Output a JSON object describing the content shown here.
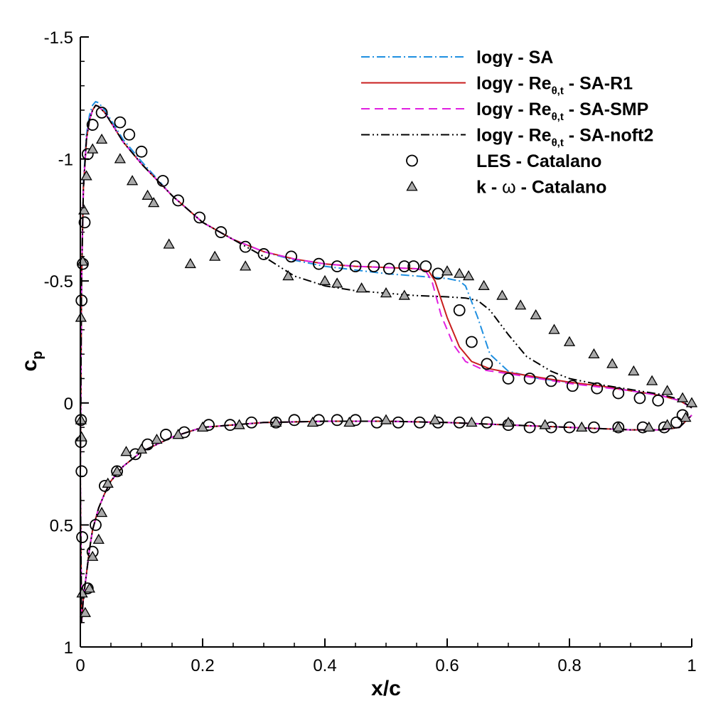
{
  "chart_data": {
    "type": "line",
    "title": "",
    "xlabel": "x/c",
    "ylabel": "c",
    "ylabel_subscript": "p",
    "xlim": [
      0,
      1
    ],
    "ylim": [
      1,
      -1.5
    ],
    "y_axis_inverted": true,
    "grid": false,
    "legend_position": "top-right",
    "x_ticks": [
      "0",
      "0.2",
      "0.4",
      "0.6",
      "0.8",
      "1"
    ],
    "y_ticks": [
      "-1.5",
      "-1",
      "-0.5",
      "0",
      "0.5",
      "1"
    ],
    "x_tick_values": [
      0,
      0.2,
      0.4,
      0.6,
      0.8,
      1
    ],
    "y_tick_values": [
      -1.5,
      -1,
      -0.5,
      0,
      0.5,
      1
    ],
    "lower_surface": {
      "x": [
        0,
        0.002,
        0.005,
        0.01,
        0.015,
        0.02,
        0.03,
        0.04,
        0.05,
        0.07,
        0.1,
        0.15,
        0.2,
        0.3,
        0.4,
        0.5,
        0.6,
        0.7,
        0.8,
        0.9,
        0.95,
        0.98,
        1.0
      ],
      "cp": [
        1.0,
        0.9,
        0.8,
        0.7,
        0.6,
        0.52,
        0.43,
        0.37,
        0.32,
        0.26,
        0.2,
        0.14,
        0.1,
        0.08,
        0.075,
        0.075,
        0.08,
        0.09,
        0.1,
        0.11,
        0.11,
        0.1,
        0.05
      ]
    },
    "series": [
      {
        "name": "SA",
        "legend": {
          "prefix": "logγ - SA",
          "sub": "",
          "suffix": ""
        },
        "color": "#1f8fe0",
        "dash": "12,4,2,4",
        "upper": {
          "x": [
            0,
            0.002,
            0.005,
            0.01,
            0.015,
            0.02,
            0.025,
            0.03,
            0.04,
            0.05,
            0.07,
            0.1,
            0.15,
            0.2,
            0.25,
            0.3,
            0.35,
            0.4,
            0.45,
            0.5,
            0.55,
            0.6,
            0.62,
            0.63,
            0.65,
            0.67,
            0.7,
            0.75,
            0.8,
            0.85,
            0.9,
            0.95,
            0.98,
            1.0
          ],
          "cp": [
            0.3,
            -0.5,
            -0.9,
            -1.1,
            -1.18,
            -1.22,
            -1.235,
            -1.23,
            -1.2,
            -1.16,
            -1.08,
            -0.99,
            -0.85,
            -0.74,
            -0.67,
            -0.62,
            -0.585,
            -0.56,
            -0.545,
            -0.53,
            -0.52,
            -0.51,
            -0.5,
            -0.48,
            -0.35,
            -0.2,
            -0.13,
            -0.1,
            -0.085,
            -0.07,
            -0.05,
            -0.03,
            -0.01,
            0.02
          ]
        },
        "lower_delta": 0
      },
      {
        "name": "SA-R1",
        "legend": {
          "prefix": "logγ - Re",
          "sub": "θ,t",
          "suffix": " - SA-R1"
        },
        "color": "#c81e1e",
        "dash": "",
        "upper": {
          "x": [
            0,
            0.002,
            0.005,
            0.01,
            0.015,
            0.02,
            0.025,
            0.03,
            0.04,
            0.05,
            0.07,
            0.1,
            0.15,
            0.2,
            0.25,
            0.3,
            0.35,
            0.4,
            0.45,
            0.5,
            0.55,
            0.57,
            0.58,
            0.6,
            0.62,
            0.64,
            0.67,
            0.7,
            0.75,
            0.8,
            0.85,
            0.9,
            0.95,
            0.98,
            1.0
          ],
          "cp": [
            0.3,
            -0.5,
            -0.88,
            -1.08,
            -1.16,
            -1.2,
            -1.22,
            -1.215,
            -1.19,
            -1.15,
            -1.07,
            -0.98,
            -0.85,
            -0.74,
            -0.67,
            -0.62,
            -0.59,
            -0.57,
            -0.56,
            -0.555,
            -0.55,
            -0.54,
            -0.5,
            -0.35,
            -0.23,
            -0.17,
            -0.14,
            -0.125,
            -0.105,
            -0.085,
            -0.07,
            -0.05,
            -0.03,
            -0.01,
            0.02
          ]
        },
        "lower_delta": 0
      },
      {
        "name": "SA-SMP",
        "legend": {
          "prefix": "logγ - Re",
          "sub": "θ,t",
          "suffix": " - SA-SMP"
        },
        "color": "#e020e0",
        "dash": "12,7",
        "upper": {
          "x": [
            0,
            0.002,
            0.005,
            0.01,
            0.015,
            0.02,
            0.025,
            0.03,
            0.04,
            0.05,
            0.07,
            0.1,
            0.15,
            0.2,
            0.25,
            0.3,
            0.35,
            0.4,
            0.45,
            0.5,
            0.55,
            0.565,
            0.575,
            0.59,
            0.61,
            0.63,
            0.66,
            0.7,
            0.75,
            0.8,
            0.85,
            0.9,
            0.95,
            0.98,
            1.0
          ],
          "cp": [
            0.3,
            -0.5,
            -0.88,
            -1.08,
            -1.16,
            -1.2,
            -1.22,
            -1.215,
            -1.19,
            -1.15,
            -1.07,
            -0.98,
            -0.85,
            -0.74,
            -0.67,
            -0.62,
            -0.59,
            -0.57,
            -0.56,
            -0.555,
            -0.55,
            -0.54,
            -0.5,
            -0.36,
            -0.24,
            -0.17,
            -0.135,
            -0.12,
            -0.1,
            -0.08,
            -0.065,
            -0.05,
            -0.03,
            -0.01,
            0.02
          ]
        },
        "lower_delta": 0
      },
      {
        "name": "SA-noft2",
        "legend": {
          "prefix": "logγ - Re",
          "sub": "θ,t",
          "suffix": " - SA-noft2"
        },
        "color": "#000000",
        "dash": "12,4,2,4,2,4",
        "upper": {
          "x": [
            0,
            0.002,
            0.005,
            0.01,
            0.015,
            0.02,
            0.025,
            0.03,
            0.04,
            0.05,
            0.07,
            0.1,
            0.15,
            0.2,
            0.25,
            0.3,
            0.35,
            0.4,
            0.45,
            0.5,
            0.55,
            0.6,
            0.63,
            0.65,
            0.67,
            0.7,
            0.73,
            0.77,
            0.8,
            0.85,
            0.9,
            0.95,
            0.98,
            1.0
          ],
          "cp": [
            0.3,
            -0.5,
            -0.88,
            -1.08,
            -1.16,
            -1.2,
            -1.22,
            -1.215,
            -1.19,
            -1.15,
            -1.07,
            -0.98,
            -0.85,
            -0.74,
            -0.67,
            -0.6,
            -0.52,
            -0.48,
            -0.46,
            -0.45,
            -0.44,
            -0.435,
            -0.43,
            -0.42,
            -0.38,
            -0.28,
            -0.19,
            -0.13,
            -0.1,
            -0.075,
            -0.055,
            -0.035,
            -0.015,
            0.02
          ]
        },
        "lower_delta": 0
      }
    ],
    "scatter": [
      {
        "name": "LES - Catalano",
        "marker": "circle",
        "upper": [
          [
            0.001,
            0.16
          ],
          [
            0.002,
            -0.42
          ],
          [
            0.004,
            -0.57
          ],
          [
            0.007,
            -0.74
          ],
          [
            0.012,
            -1.02
          ],
          [
            0.02,
            -1.14
          ],
          [
            0.035,
            -1.19
          ],
          [
            0.065,
            -1.15
          ],
          [
            0.08,
            -1.1
          ],
          [
            0.1,
            -1.03
          ],
          [
            0.135,
            -0.91
          ],
          [
            0.16,
            -0.83
          ],
          [
            0.195,
            -0.76
          ],
          [
            0.23,
            -0.7
          ],
          [
            0.27,
            -0.64
          ],
          [
            0.3,
            -0.61
          ],
          [
            0.345,
            -0.6
          ],
          [
            0.39,
            -0.57
          ],
          [
            0.42,
            -0.56
          ],
          [
            0.45,
            -0.56
          ],
          [
            0.48,
            -0.56
          ],
          [
            0.505,
            -0.55
          ],
          [
            0.53,
            -0.56
          ],
          [
            0.545,
            -0.56
          ],
          [
            0.565,
            -0.56
          ],
          [
            0.585,
            -0.53
          ],
          [
            0.62,
            -0.38
          ],
          [
            0.64,
            -0.25
          ],
          [
            0.665,
            -0.16
          ],
          [
            0.7,
            -0.1
          ],
          [
            0.735,
            -0.1
          ],
          [
            0.77,
            -0.09
          ],
          [
            0.805,
            -0.07
          ],
          [
            0.845,
            -0.06
          ],
          [
            0.88,
            -0.04
          ],
          [
            0.915,
            -0.02
          ],
          [
            0.945,
            -0.01
          ],
          [
            0.985,
            0.05
          ]
        ],
        "lower": [
          [
            0.001,
            0.07
          ],
          [
            0.002,
            0.28
          ],
          [
            0.003,
            0.55
          ],
          [
            0.012,
            0.76
          ],
          [
            0.02,
            0.61
          ],
          [
            0.025,
            0.5
          ],
          [
            0.04,
            0.34
          ],
          [
            0.06,
            0.28
          ],
          [
            0.09,
            0.21
          ],
          [
            0.11,
            0.17
          ],
          [
            0.14,
            0.13
          ],
          [
            0.17,
            0.12
          ],
          [
            0.21,
            0.09
          ],
          [
            0.245,
            0.09
          ],
          [
            0.28,
            0.08
          ],
          [
            0.32,
            0.08
          ],
          [
            0.35,
            0.07
          ],
          [
            0.39,
            0.07
          ],
          [
            0.42,
            0.07
          ],
          [
            0.45,
            0.07
          ],
          [
            0.485,
            0.08
          ],
          [
            0.52,
            0.08
          ],
          [
            0.555,
            0.08
          ],
          [
            0.585,
            0.08
          ],
          [
            0.62,
            0.08
          ],
          [
            0.665,
            0.08
          ],
          [
            0.7,
            0.09
          ],
          [
            0.735,
            0.1
          ],
          [
            0.77,
            0.1
          ],
          [
            0.8,
            0.1
          ],
          [
            0.84,
            0.1
          ],
          [
            0.88,
            0.1
          ],
          [
            0.92,
            0.1
          ],
          [
            0.955,
            0.1
          ],
          [
            0.975,
            0.08
          ]
        ]
      },
      {
        "name": "k - ω - Catalano",
        "legend_prefix": "k - ",
        "legend_symbol": "ω",
        "legend_suffix": " - Catalano",
        "marker": "triangle",
        "upper": [
          [
            0.001,
            -0.35
          ],
          [
            0.002,
            0.14
          ],
          [
            0.004,
            -0.58
          ],
          [
            0.006,
            -0.79
          ],
          [
            0.01,
            -0.93
          ],
          [
            0.02,
            -1.04
          ],
          [
            0.035,
            -1.08
          ],
          [
            0.065,
            -1.0
          ],
          [
            0.085,
            -0.91
          ],
          [
            0.11,
            -0.85
          ],
          [
            0.12,
            -0.82
          ],
          [
            0.145,
            -0.65
          ],
          [
            0.18,
            -0.57
          ],
          [
            0.22,
            -0.6
          ],
          [
            0.27,
            -0.56
          ],
          [
            0.34,
            -0.52
          ],
          [
            0.4,
            -0.5
          ],
          [
            0.42,
            -0.49
          ],
          [
            0.46,
            -0.47
          ],
          [
            0.5,
            -0.45
          ],
          [
            0.53,
            -0.44
          ],
          [
            0.6,
            -0.54
          ],
          [
            0.62,
            -0.53
          ],
          [
            0.635,
            -0.52
          ],
          [
            0.66,
            -0.48
          ],
          [
            0.69,
            -0.44
          ],
          [
            0.72,
            -0.4
          ],
          [
            0.745,
            -0.36
          ],
          [
            0.775,
            -0.3
          ],
          [
            0.8,
            -0.25
          ],
          [
            0.84,
            -0.2
          ],
          [
            0.87,
            -0.16
          ],
          [
            0.905,
            -0.13
          ],
          [
            0.935,
            -0.09
          ],
          [
            0.96,
            -0.05
          ],
          [
            0.985,
            -0.02
          ],
          [
            1.0,
            0.0
          ]
        ],
        "lower": [
          [
            0.001,
            0.07
          ],
          [
            0.003,
            0.78
          ],
          [
            0.008,
            0.86
          ],
          [
            0.015,
            0.76
          ],
          [
            0.02,
            0.63
          ],
          [
            0.03,
            0.56
          ],
          [
            0.035,
            0.45
          ],
          [
            0.045,
            0.33
          ],
          [
            0.06,
            0.28
          ],
          [
            0.075,
            0.2
          ],
          [
            0.1,
            0.19
          ],
          [
            0.125,
            0.15
          ],
          [
            0.16,
            0.13
          ],
          [
            0.2,
            0.1
          ],
          [
            0.26,
            0.09
          ],
          [
            0.32,
            0.08
          ],
          [
            0.38,
            0.08
          ],
          [
            0.44,
            0.08
          ],
          [
            0.5,
            0.07
          ],
          [
            0.58,
            0.07
          ],
          [
            0.64,
            0.08
          ],
          [
            0.7,
            0.08
          ],
          [
            0.76,
            0.09
          ],
          [
            0.82,
            0.1
          ],
          [
            0.88,
            0.1
          ],
          [
            0.93,
            0.1
          ],
          [
            0.96,
            0.09
          ],
          [
            0.99,
            0.06
          ]
        ]
      }
    ]
  }
}
